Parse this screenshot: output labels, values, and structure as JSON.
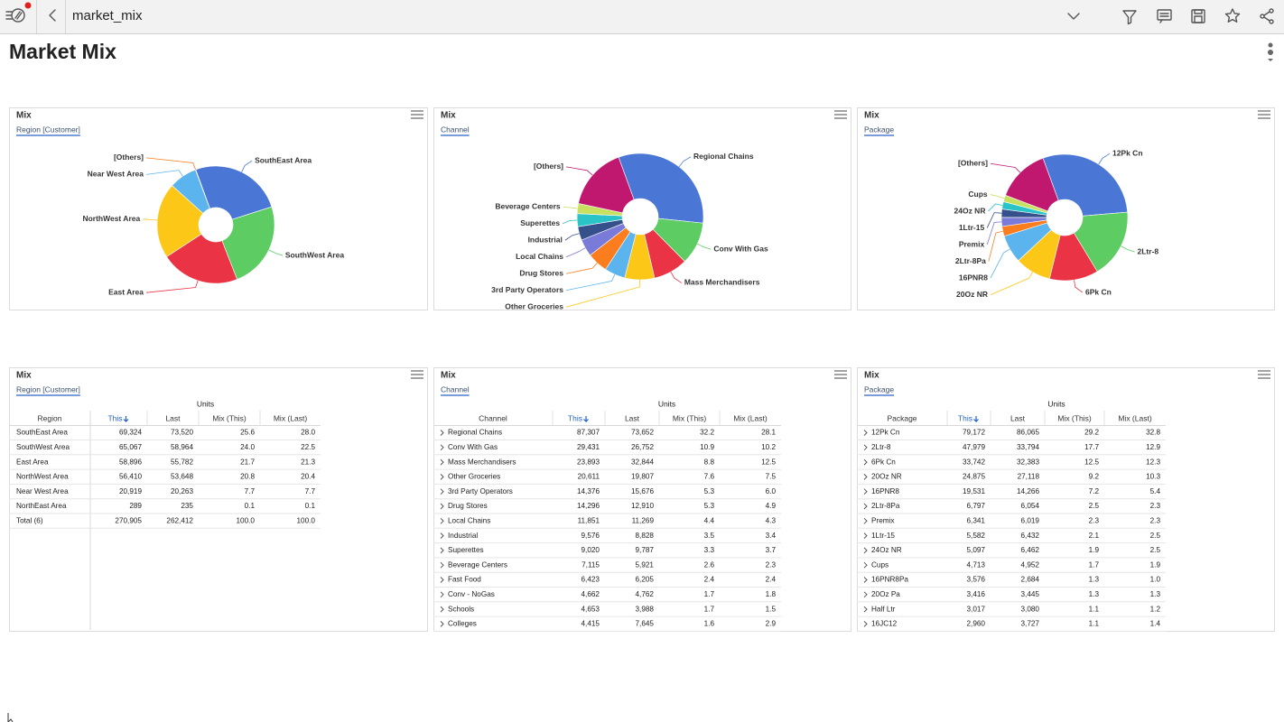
{
  "header": {
    "title": "market_mix"
  },
  "page_title": "Market Mix",
  "chart_data": [
    {
      "type": "pie",
      "title": "Mix",
      "subtitle": "Region [Customer]",
      "categories": [
        "SouthEast Area",
        "SouthWest Area",
        "East Area",
        "NorthWest Area",
        "Near West Area",
        "[Others]"
      ],
      "values": [
        25.6,
        24.0,
        21.7,
        20.8,
        7.7,
        0.1
      ],
      "colors": [
        "#4a77d6",
        "#5dcc62",
        "#ea3445",
        "#fdc718",
        "#5cb4ee",
        "#fb7d1d"
      ]
    },
    {
      "type": "pie",
      "title": "Mix",
      "subtitle": "Channel",
      "categories": [
        "Regional Chains",
        "Conv With Gas",
        "Mass Merchandisers",
        "Other Groceries",
        "3rd Party Operators",
        "Drug Stores",
        "Local Chains",
        "Industrial",
        "Superettes",
        "Beverage Centers",
        "[Others]"
      ],
      "values": [
        32.2,
        10.9,
        8.8,
        7.6,
        5.3,
        5.3,
        4.4,
        3.5,
        3.3,
        2.6,
        16.1
      ],
      "colors": [
        "#4a77d6",
        "#5dcc62",
        "#ea3445",
        "#fdc718",
        "#5cb4ee",
        "#fb7d1d",
        "#7a7ad8",
        "#36508b",
        "#2ac4c8",
        "#c8e05f",
        "#c1186f"
      ]
    },
    {
      "type": "pie",
      "title": "Mix",
      "subtitle": "Package",
      "categories": [
        "12Pk Cn",
        "2Ltr-8",
        "6Pk Cn",
        "20Oz NR",
        "16PNR8",
        "2Ltr-8Pa",
        "Premix",
        "1Ltr-15",
        "24Oz NR",
        "Cups",
        "[Others]"
      ],
      "values": [
        29.2,
        17.7,
        12.5,
        9.2,
        7.2,
        2.5,
        2.3,
        2.1,
        1.9,
        1.7,
        13.7
      ],
      "colors": [
        "#4a77d6",
        "#5dcc62",
        "#ea3445",
        "#fdc718",
        "#5cb4ee",
        "#fb7d1d",
        "#7a7ad8",
        "#36508b",
        "#2ac4c8",
        "#c8e05f",
        "#c1186f"
      ]
    }
  ],
  "tables": [
    {
      "title": "Mix",
      "subtitle": "Region [Customer]",
      "group_header": "Units",
      "columns": [
        "Region",
        "This",
        "Last",
        "Mix (This)",
        "Mix (Last)"
      ],
      "rows": [
        [
          "SouthEast Area",
          "69,324",
          "73,520",
          "25.6",
          "28.0"
        ],
        [
          "SouthWest Area",
          "65,067",
          "58,964",
          "24.0",
          "22.5"
        ],
        [
          "East Area",
          "58,896",
          "55,782",
          "21.7",
          "21.3"
        ],
        [
          "NorthWest Area",
          "56,410",
          "53,648",
          "20.8",
          "20.4"
        ],
        [
          "Near West Area",
          "20,919",
          "20,263",
          "7.7",
          "7.7"
        ],
        [
          "NorthEast Area",
          "289",
          "235",
          "0.1",
          "0.1"
        ],
        [
          "Total (6)",
          "270,905",
          "262,412",
          "100.0",
          "100.0"
        ]
      ]
    },
    {
      "title": "Mix",
      "subtitle": "Channel",
      "group_header": "Units",
      "columns": [
        "Channel",
        "This",
        "Last",
        "Mix (This)",
        "Mix (Last)"
      ],
      "rows": [
        [
          "Regional Chains",
          "87,307",
          "73,652",
          "32.2",
          "28.1"
        ],
        [
          "Conv With Gas",
          "29,431",
          "26,752",
          "10.9",
          "10.2"
        ],
        [
          "Mass Merchandisers",
          "23,893",
          "32,844",
          "8.8",
          "12.5"
        ],
        [
          "Other Groceries",
          "20,611",
          "19,807",
          "7.6",
          "7.5"
        ],
        [
          "3rd Party Operators",
          "14,376",
          "15,676",
          "5.3",
          "6.0"
        ],
        [
          "Drug Stores",
          "14,296",
          "12,910",
          "5.3",
          "4.9"
        ],
        [
          "Local Chains",
          "11,851",
          "11,269",
          "4.4",
          "4.3"
        ],
        [
          "Industrial",
          "9,576",
          "8,828",
          "3.5",
          "3.4"
        ],
        [
          "Superettes",
          "9,020",
          "9,787",
          "3.3",
          "3.7"
        ],
        [
          "Beverage Centers",
          "7,115",
          "5,921",
          "2.6",
          "2.3"
        ],
        [
          "Fast Food",
          "6,423",
          "6,205",
          "2.4",
          "2.4"
        ],
        [
          "Conv - NoGas",
          "4,662",
          "4,762",
          "1.7",
          "1.8"
        ],
        [
          "Schools",
          "4,653",
          "3,988",
          "1.7",
          "1.5"
        ],
        [
          "Colleges",
          "4,415",
          "7,645",
          "1.6",
          "2.9"
        ]
      ]
    },
    {
      "title": "Mix",
      "subtitle": "Package",
      "group_header": "Units",
      "columns": [
        "Package",
        "This",
        "Last",
        "Mix (This)",
        "Mix (Last)"
      ],
      "rows": [
        [
          "12Pk Cn",
          "79,172",
          "86,065",
          "29.2",
          "32.8"
        ],
        [
          "2Ltr-8",
          "47,979",
          "33,794",
          "17.7",
          "12.9"
        ],
        [
          "6Pk Cn",
          "33,742",
          "32,383",
          "12.5",
          "12.3"
        ],
        [
          "20Oz NR",
          "24,875",
          "27,118",
          "9.2",
          "10.3"
        ],
        [
          "16PNR8",
          "19,531",
          "14,266",
          "7.2",
          "5.4"
        ],
        [
          "2Ltr-8Pa",
          "6,797",
          "6,054",
          "2.5",
          "2.3"
        ],
        [
          "Premix",
          "6,341",
          "6,019",
          "2.3",
          "2.3"
        ],
        [
          "1Ltr-15",
          "5,582",
          "6,432",
          "2.1",
          "2.5"
        ],
        [
          "24Oz NR",
          "5,097",
          "6,462",
          "1.9",
          "2.5"
        ],
        [
          "Cups",
          "4,713",
          "4,952",
          "1.7",
          "1.9"
        ],
        [
          "16PNR8Pa",
          "3,576",
          "2,684",
          "1.3",
          "1.0"
        ],
        [
          "20Oz Pa",
          "3,416",
          "3,445",
          "1.3",
          "1.3"
        ],
        [
          "Half Ltr",
          "3,017",
          "3,080",
          "1.1",
          "1.2"
        ],
        [
          "16JC12",
          "2,960",
          "3,727",
          "1.1",
          "1.4"
        ]
      ]
    }
  ]
}
